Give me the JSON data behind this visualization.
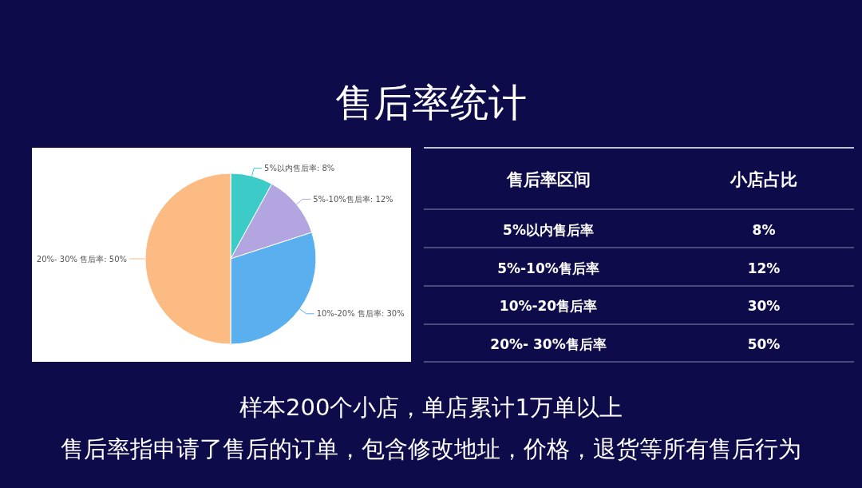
{
  "chart_data": [
    {
      "type": "pie",
      "title": "售后率统计",
      "categories": [
        "5%以内售后率: 8%",
        "5%-10%售后率: 12%",
        "10%-20% 售后率: 30%",
        "20%- 30% 售后率: 50%"
      ],
      "values": [
        8,
        12,
        30,
        50
      ],
      "colors": [
        "#3ccbc6",
        "#b3a5e0",
        "#5ab0ee",
        "#fdbb84"
      ],
      "annotations": [
        "样本200个小店，单店累计1万单以上",
        "售后率指申请了售后的订单，包含修改地址，价格，退货等所有售后行为"
      ]
    },
    {
      "type": "other",
      "annotations": [
        "售后率区间",
        "小店占比",
        "5%以内售后率",
        "8%",
        "5%-10%售后率",
        "12%",
        "10%-20售后率",
        "30%",
        "20%- 30%售后率",
        "50%"
      ]
    }
  ]
}
